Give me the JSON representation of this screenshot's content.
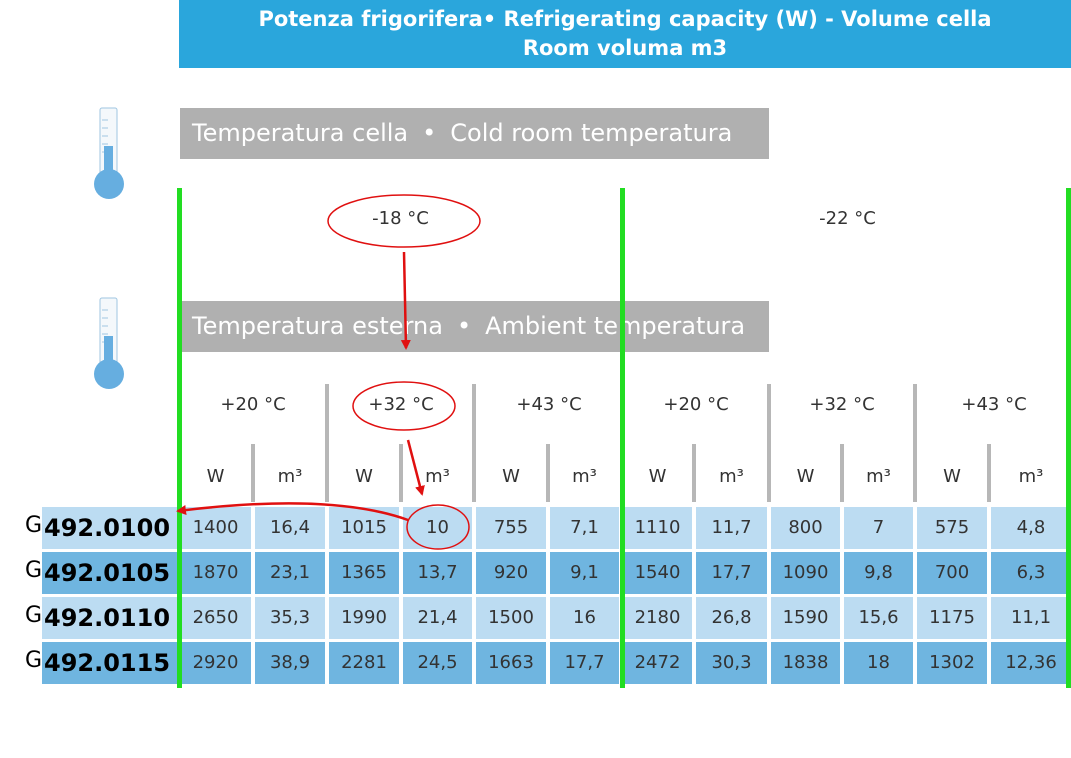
{
  "header": {
    "line1": "Potenza frigorifera•  Refrigerating capacity (W) - Volume cella",
    "line2": "Room voluma m3"
  },
  "cold_room_bar": {
    "label_it": "Temperatura cella",
    "separator": "•",
    "label_en": "Cold room temperatura"
  },
  "ambient_bar": {
    "label_it": "Temperatura esterna",
    "separator": "•",
    "label_en": "Ambient temperatura"
  },
  "icons": [
    "thermometer-icon",
    "thermometer-icon"
  ],
  "colors": {
    "header": "#2aa6dc",
    "bar_grey": "#b0b0b0",
    "row_light": "#bcdcf2",
    "row_dark": "#6fb5e0",
    "annotation_red": "#e01010",
    "annotation_green": "#22dd22"
  },
  "room_temps": [
    "-18 °C",
    "-22 °C"
  ],
  "ambient_temps": [
    "+20 °C",
    "+32 °C",
    "+43 °C",
    "+20 °C",
    "+32 °C",
    "+43 °C"
  ],
  "units": [
    "W",
    "m³",
    "W",
    "m³",
    "W",
    "m³",
    "W",
    "m³",
    "W",
    "m³",
    "W",
    "m³"
  ],
  "rows": [
    {
      "prefix": "G",
      "model": "492.0100",
      "values": [
        "1400",
        "16,4",
        "1015",
        "10",
        "755",
        "7,1",
        "1110",
        "11,7",
        "800",
        "7",
        "575",
        "4,8"
      ]
    },
    {
      "prefix": "G",
      "model": "492.0105",
      "values": [
        "1870",
        "23,1",
        "1365",
        "13,7",
        "920",
        "9,1",
        "1540",
        "17,7",
        "1090",
        "9,8",
        "700",
        "6,3"
      ]
    },
    {
      "prefix": "G",
      "model": "492.0110",
      "values": [
        "2650",
        "35,3",
        "1990",
        "21,4",
        "1500",
        "16",
        "2180",
        "26,8",
        "1590",
        "15,6",
        "1175",
        "11,1"
      ]
    },
    {
      "prefix": "G",
      "model": "492.0115",
      "values": [
        "2920",
        "38,9",
        "2281",
        "24,5",
        "1663",
        "17,7",
        "2472",
        "30,3",
        "1838",
        "18",
        "1302",
        "12,36"
      ]
    }
  ]
}
